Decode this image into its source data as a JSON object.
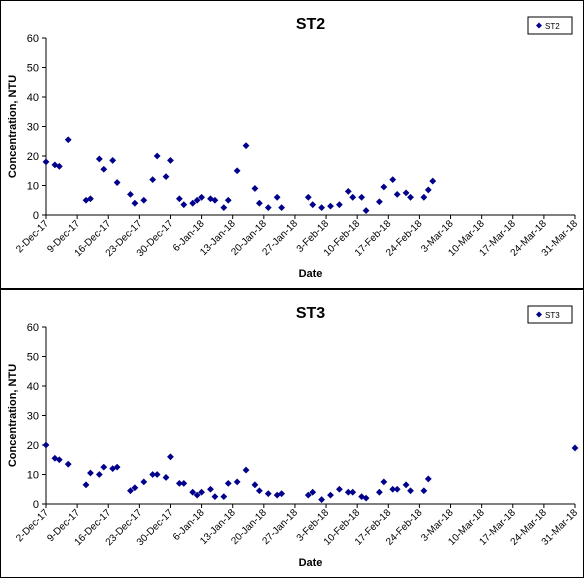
{
  "chart_data": [
    {
      "type": "scatter",
      "title": "ST2",
      "xlabel": "Date",
      "ylabel": "Concentration, NTU",
      "ylim": [
        0,
        60
      ],
      "yticks": [
        "0",
        "10",
        "20",
        "30",
        "40",
        "50",
        "60"
      ],
      "xlim": [
        "2017-12-02",
        "2018-03-31"
      ],
      "xticks": [
        "2-Dec-17",
        "9-Dec-17",
        "16-Dec-17",
        "23-Dec-17",
        "30-Dec-17",
        "6-Jan-18",
        "13-Jan-18",
        "20-Jan-18",
        "27-Jan-18",
        "3-Feb-18",
        "10-Feb-18",
        "17-Feb-18",
        "24-Feb-18",
        "3-Mar-18",
        "10-Mar-18",
        "17-Mar-18",
        "24-Mar-18",
        "31-Mar-18"
      ],
      "grid": false,
      "legend": "top-right",
      "marker_color": "#00008B",
      "series": [
        {
          "name": "ST2",
          "points": [
            [
              "2017-12-02",
              18.0
            ],
            [
              "2017-12-04",
              17.0
            ],
            [
              "2017-12-05",
              16.5
            ],
            [
              "2017-12-07",
              25.5
            ],
            [
              "2017-12-11",
              5.0
            ],
            [
              "2017-12-12",
              5.5
            ],
            [
              "2017-12-14",
              19.0
            ],
            [
              "2017-12-15",
              15.5
            ],
            [
              "2017-12-17",
              18.5
            ],
            [
              "2017-12-18",
              11.0
            ],
            [
              "2017-12-21",
              7.0
            ],
            [
              "2017-12-22",
              4.0
            ],
            [
              "2017-12-24",
              5.0
            ],
            [
              "2017-12-26",
              12.0
            ],
            [
              "2017-12-27",
              20.0
            ],
            [
              "2017-12-29",
              13.0
            ],
            [
              "2017-12-30",
              18.5
            ],
            [
              "2018-01-01",
              5.5
            ],
            [
              "2018-01-02",
              3.5
            ],
            [
              "2018-01-04",
              4.0
            ],
            [
              "2018-01-05",
              5.0
            ],
            [
              "2018-01-06",
              6.0
            ],
            [
              "2018-01-08",
              5.5
            ],
            [
              "2018-01-09",
              5.0
            ],
            [
              "2018-01-11",
              2.5
            ],
            [
              "2018-01-12",
              5.0
            ],
            [
              "2018-01-14",
              15.0
            ],
            [
              "2018-01-16",
              23.5
            ],
            [
              "2018-01-18",
              9.0
            ],
            [
              "2018-01-19",
              4.0
            ],
            [
              "2018-01-21",
              2.5
            ],
            [
              "2018-01-23",
              6.0
            ],
            [
              "2018-01-24",
              2.5
            ],
            [
              "2018-01-30",
              6.0
            ],
            [
              "2018-01-31",
              3.5
            ],
            [
              "2018-02-02",
              2.5
            ],
            [
              "2018-02-04",
              3.0
            ],
            [
              "2018-02-06",
              3.5
            ],
            [
              "2018-02-08",
              8.0
            ],
            [
              "2018-02-09",
              6.0
            ],
            [
              "2018-02-11",
              6.0
            ],
            [
              "2018-02-12",
              1.5
            ],
            [
              "2018-02-15",
              4.5
            ],
            [
              "2018-02-16",
              9.5
            ],
            [
              "2018-02-18",
              12.0
            ],
            [
              "2018-02-19",
              7.0
            ],
            [
              "2018-02-21",
              7.5
            ],
            [
              "2018-02-22",
              6.0
            ],
            [
              "2018-02-25",
              6.0
            ],
            [
              "2018-02-26",
              8.5
            ],
            [
              "2018-02-27",
              11.5
            ]
          ]
        }
      ]
    },
    {
      "type": "scatter",
      "title": "ST3",
      "xlabel": "Date",
      "ylabel": "Concentration, NTU",
      "ylim": [
        0,
        60
      ],
      "yticks": [
        "0",
        "10",
        "20",
        "30",
        "40",
        "50",
        "60"
      ],
      "xlim": [
        "2017-12-02",
        "2018-03-31"
      ],
      "xticks": [
        "2-Dec-17",
        "9-Dec-17",
        "16-Dec-17",
        "23-Dec-17",
        "30-Dec-17",
        "6-Jan-18",
        "13-Jan-18",
        "20-Jan-18",
        "27-Jan-18",
        "3-Feb-18",
        "10-Feb-18",
        "17-Feb-18",
        "24-Feb-18",
        "3-Mar-18",
        "10-Mar-18",
        "17-Mar-18",
        "24-Mar-18",
        "31-Mar-18"
      ],
      "grid": false,
      "legend": "top-right",
      "marker_color": "#00008B",
      "series": [
        {
          "name": "ST3",
          "points": [
            [
              "2017-12-02",
              20.0
            ],
            [
              "2017-12-04",
              15.5
            ],
            [
              "2017-12-05",
              15.0
            ],
            [
              "2017-12-07",
              13.5
            ],
            [
              "2017-12-11",
              6.5
            ],
            [
              "2017-12-12",
              10.5
            ],
            [
              "2017-12-14",
              10.0
            ],
            [
              "2017-12-15",
              12.5
            ],
            [
              "2017-12-17",
              12.0
            ],
            [
              "2017-12-18",
              12.5
            ],
            [
              "2017-12-21",
              4.5
            ],
            [
              "2017-12-22",
              5.5
            ],
            [
              "2017-12-24",
              7.5
            ],
            [
              "2017-12-26",
              10.0
            ],
            [
              "2017-12-27",
              10.0
            ],
            [
              "2017-12-29",
              9.0
            ],
            [
              "2017-12-30",
              16.0
            ],
            [
              "2018-01-01",
              7.0
            ],
            [
              "2018-01-02",
              7.0
            ],
            [
              "2018-01-04",
              4.0
            ],
            [
              "2018-01-05",
              3.0
            ],
            [
              "2018-01-06",
              4.0
            ],
            [
              "2018-01-08",
              5.0
            ],
            [
              "2018-01-09",
              2.5
            ],
            [
              "2018-01-11",
              2.5
            ],
            [
              "2018-01-12",
              7.0
            ],
            [
              "2018-01-14",
              7.5
            ],
            [
              "2018-01-16",
              11.5
            ],
            [
              "2018-01-18",
              6.5
            ],
            [
              "2018-01-19",
              4.5
            ],
            [
              "2018-01-21",
              3.5
            ],
            [
              "2018-01-23",
              3.0
            ],
            [
              "2018-01-24",
              3.5
            ],
            [
              "2018-01-30",
              3.0
            ],
            [
              "2018-01-31",
              4.0
            ],
            [
              "2018-02-02",
              1.5
            ],
            [
              "2018-02-04",
              3.0
            ],
            [
              "2018-02-06",
              5.0
            ],
            [
              "2018-02-08",
              4.0
            ],
            [
              "2018-02-09",
              4.0
            ],
            [
              "2018-02-11",
              2.5
            ],
            [
              "2018-02-12",
              2.0
            ],
            [
              "2018-02-15",
              4.0
            ],
            [
              "2018-02-16",
              7.5
            ],
            [
              "2018-02-18",
              5.0
            ],
            [
              "2018-02-19",
              5.0
            ],
            [
              "2018-02-21",
              6.5
            ],
            [
              "2018-02-22",
              4.5
            ],
            [
              "2018-02-25",
              4.5
            ],
            [
              "2018-02-26",
              8.5
            ],
            [
              "2018-03-31",
              19.0
            ]
          ]
        }
      ]
    }
  ]
}
